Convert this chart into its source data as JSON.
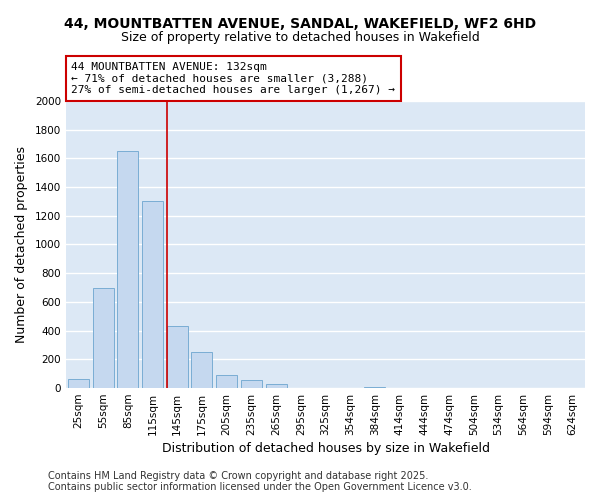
{
  "title_line1": "44, MOUNTBATTEN AVENUE, SANDAL, WAKEFIELD, WF2 6HD",
  "title_line2": "Size of property relative to detached houses in Wakefield",
  "xlabel": "Distribution of detached houses by size in Wakefield",
  "ylabel": "Number of detached properties",
  "bar_color": "#c5d8ef",
  "bar_edge_color": "#7aadd4",
  "background_color": "#dce8f5",
  "grid_color": "#ffffff",
  "categories": [
    "25sqm",
    "55sqm",
    "85sqm",
    "115sqm",
    "145sqm",
    "175sqm",
    "205sqm",
    "235sqm",
    "265sqm",
    "295sqm",
    "325sqm",
    "354sqm",
    "384sqm",
    "414sqm",
    "444sqm",
    "474sqm",
    "504sqm",
    "534sqm",
    "564sqm",
    "594sqm",
    "624sqm"
  ],
  "values": [
    65,
    700,
    1650,
    1300,
    435,
    250,
    90,
    55,
    25,
    0,
    0,
    0,
    10,
    0,
    0,
    0,
    0,
    0,
    0,
    0,
    0
  ],
  "ylim": [
    0,
    2000
  ],
  "yticks": [
    0,
    200,
    400,
    600,
    800,
    1000,
    1200,
    1400,
    1600,
    1800,
    2000
  ],
  "annotation_line1": "44 MOUNTBATTEN AVENUE: 132sqm",
  "annotation_line2": "← 71% of detached houses are smaller (3,288)",
  "annotation_line3": "27% of semi-detached houses are larger (1,267) →",
  "vline_color": "#cc0000",
  "annotation_box_edge_color": "#cc0000",
  "footer_line1": "Contains HM Land Registry data © Crown copyright and database right 2025.",
  "footer_line2": "Contains public sector information licensed under the Open Government Licence v3.0.",
  "title_fontsize": 10,
  "subtitle_fontsize": 9,
  "axis_label_fontsize": 9,
  "tick_fontsize": 7.5,
  "annotation_fontsize": 8,
  "footer_fontsize": 7,
  "fig_bg": "#ffffff",
  "vline_x_index": 3.567
}
